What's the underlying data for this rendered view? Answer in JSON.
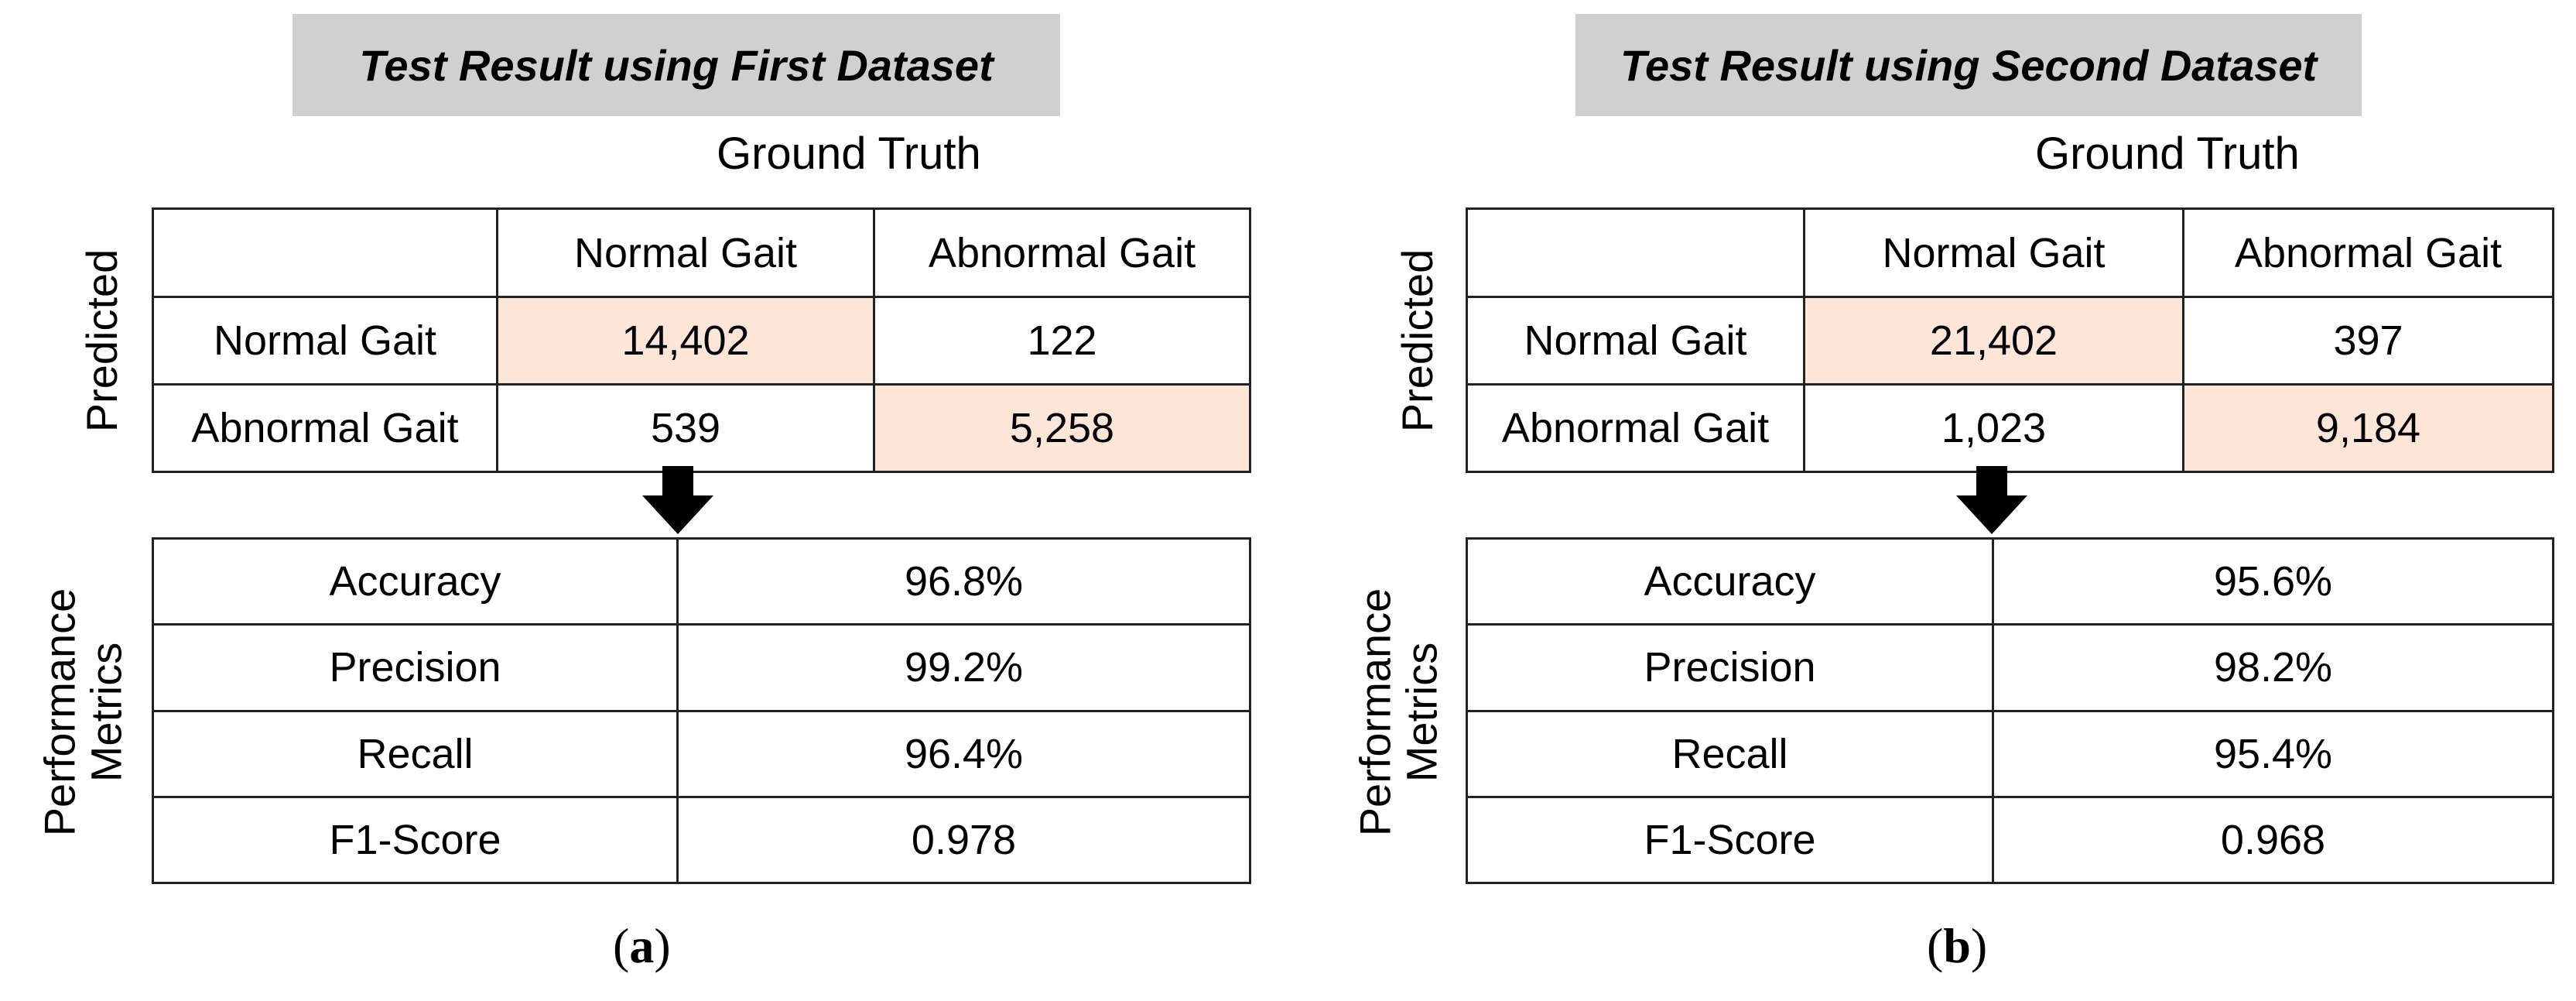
{
  "panels": [
    {
      "title": "Test Result using First Dataset",
      "ground_truth_label": "Ground Truth",
      "predicted_label": "Predicted",
      "metrics_label_line1": "Performance",
      "metrics_label_line2": "Metrics",
      "confusion": {
        "columns": [
          "",
          "Normal Gait",
          "Abnormal Gait"
        ],
        "rows": [
          {
            "label": "Normal Gait",
            "values": [
              "14,402",
              "122"
            ]
          },
          {
            "label": "Abnormal Gait",
            "values": [
              "539",
              "5,258"
            ]
          }
        ]
      },
      "metrics": [
        {
          "name": "Accuracy",
          "value": "96.8%"
        },
        {
          "name": "Precision",
          "value": "99.2%"
        },
        {
          "name": "Recall",
          "value": "96.4%"
        },
        {
          "name": "F1-Score",
          "value": "0.978"
        }
      ],
      "caption_open": "(",
      "caption_letter": "a",
      "caption_close": ")"
    },
    {
      "title": "Test Result using Second Dataset",
      "ground_truth_label": "Ground Truth",
      "predicted_label": "Predicted",
      "metrics_label_line1": "Performance",
      "metrics_label_line2": "Metrics",
      "confusion": {
        "columns": [
          "",
          "Normal Gait",
          "Abnormal Gait"
        ],
        "rows": [
          {
            "label": "Normal Gait",
            "values": [
              "21,402",
              "397"
            ]
          },
          {
            "label": "Abnormal Gait",
            "values": [
              "1,023",
              "9,184"
            ]
          }
        ]
      },
      "metrics": [
        {
          "name": "Accuracy",
          "value": "95.6%"
        },
        {
          "name": "Precision",
          "value": "98.2%"
        },
        {
          "name": "Recall",
          "value": "95.4%"
        },
        {
          "name": "F1-Score",
          "value": "0.968"
        }
      ],
      "caption_open": "(",
      "caption_letter": "b",
      "caption_close": ")"
    }
  ],
  "colors": {
    "title_background": "#d0d0d0",
    "highlight_cell": "#fde5d7",
    "border": "#222222"
  }
}
